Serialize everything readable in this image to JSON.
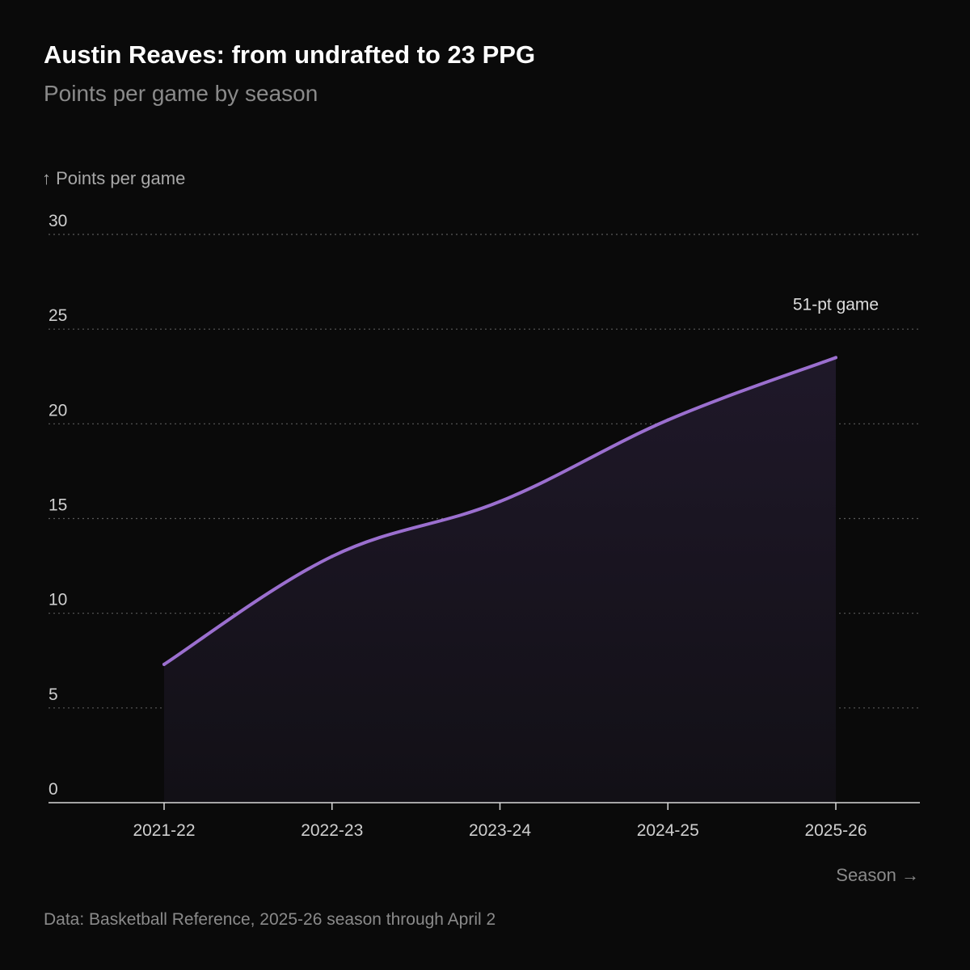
{
  "header": {
    "title": "Austin Reaves: from undrafted to 23 PPG",
    "subtitle": "Points per game by season"
  },
  "footer": {
    "source": "Data: Basketball Reference, 2025-26 season through April 2"
  },
  "chart_data": {
    "type": "area",
    "categories": [
      "2021-22",
      "2022-23",
      "2023-24",
      "2024-25",
      "2025-26"
    ],
    "series": [
      {
        "values": [
          7.3,
          13.0,
          15.9,
          20.2,
          23.5
        ]
      }
    ],
    "ylabel": "↑ Points per game",
    "xlabel": "Season →",
    "ylim": [
      0,
      30
    ],
    "yticks": [
      0,
      5,
      10,
      15,
      20,
      25,
      30
    ],
    "grid": true,
    "line_color": "#9b6fcf",
    "fill_color": "#1c1626",
    "annotations": [
      {
        "category": "2025-26",
        "text": "51-pt game"
      }
    ]
  }
}
